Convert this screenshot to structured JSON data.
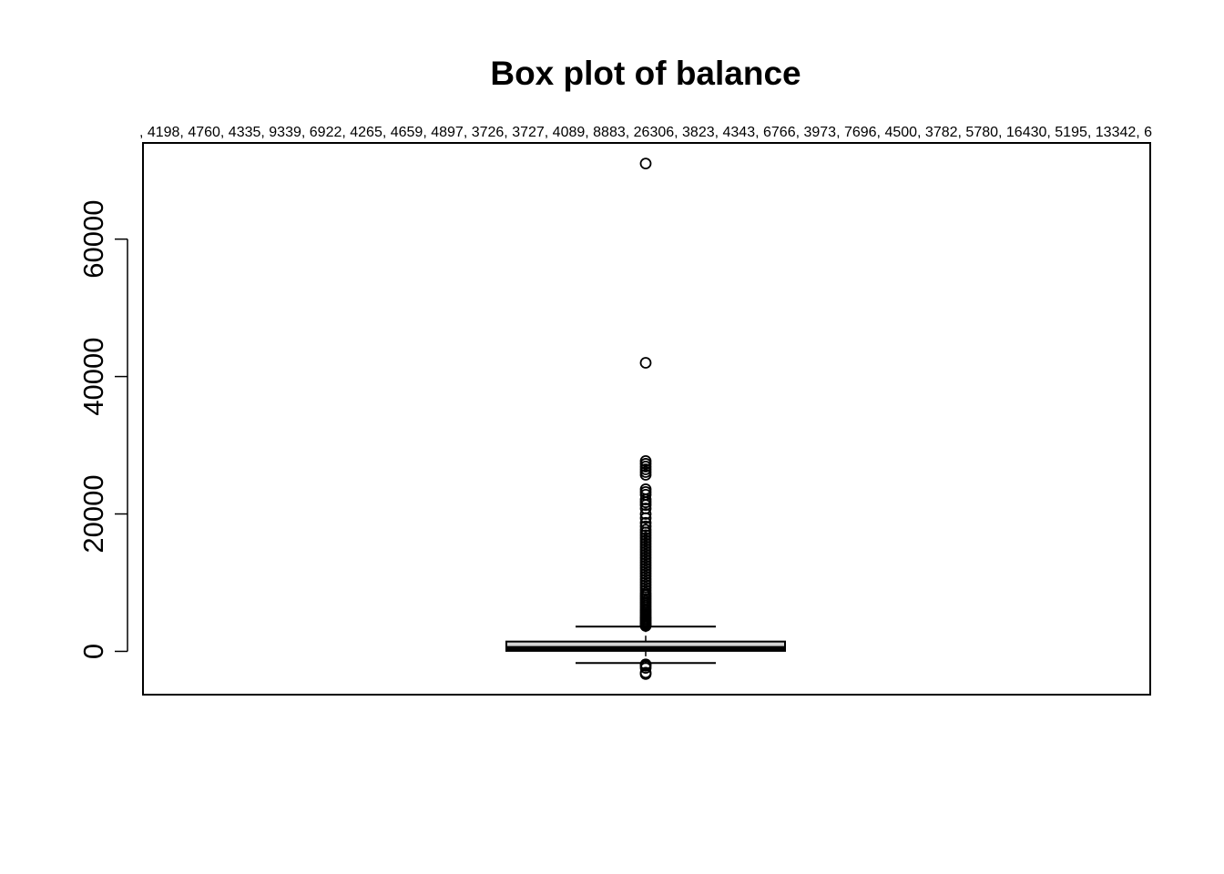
{
  "chart_data": {
    "type": "boxplot",
    "title": "Box plot of balance",
    "subtitle": ", 4198, 4760, 4335, 9339, 6922, 4265, 4659, 4897, 3726, 3727, 4089, 8883, 26306, 3823, 4343, 6766, 3973, 7696, 4500, 3782, 5780, 16430, 5195, 13342, 6",
    "xlabel": "",
    "ylabel": "",
    "ylim": [
      -6300,
      74000
    ],
    "yticks": [
      0,
      20000,
      40000,
      60000
    ],
    "ytick_labels": [
      "0",
      "20000",
      "40000",
      "60000"
    ],
    "grid": false,
    "box": {
      "q1": 72,
      "median": 448,
      "q3": 1428,
      "whisker_low": -1700,
      "whisker_high": 3600
    },
    "outliers": [
      -3300,
      -3100,
      -2400,
      -2100,
      -1900,
      3700,
      3800,
      3950,
      4100,
      4300,
      4500,
      4700,
      4900,
      5100,
      5350,
      5600,
      5850,
      6100,
      6400,
      6700,
      7000,
      7300,
      7600,
      7900,
      8200,
      8500,
      8900,
      9300,
      9700,
      10100,
      10500,
      10900,
      11300,
      11700,
      12100,
      12500,
      12900,
      13300,
      13700,
      14100,
      14500,
      14900,
      15300,
      15700,
      16100,
      16500,
      16900,
      17300,
      17700,
      18200,
      18700,
      19400,
      20000,
      20800,
      21300,
      21700,
      22100,
      22800,
      23200,
      23600,
      25700,
      26100,
      26500,
      26900,
      27300,
      27700,
      42000,
      71000
    ]
  }
}
